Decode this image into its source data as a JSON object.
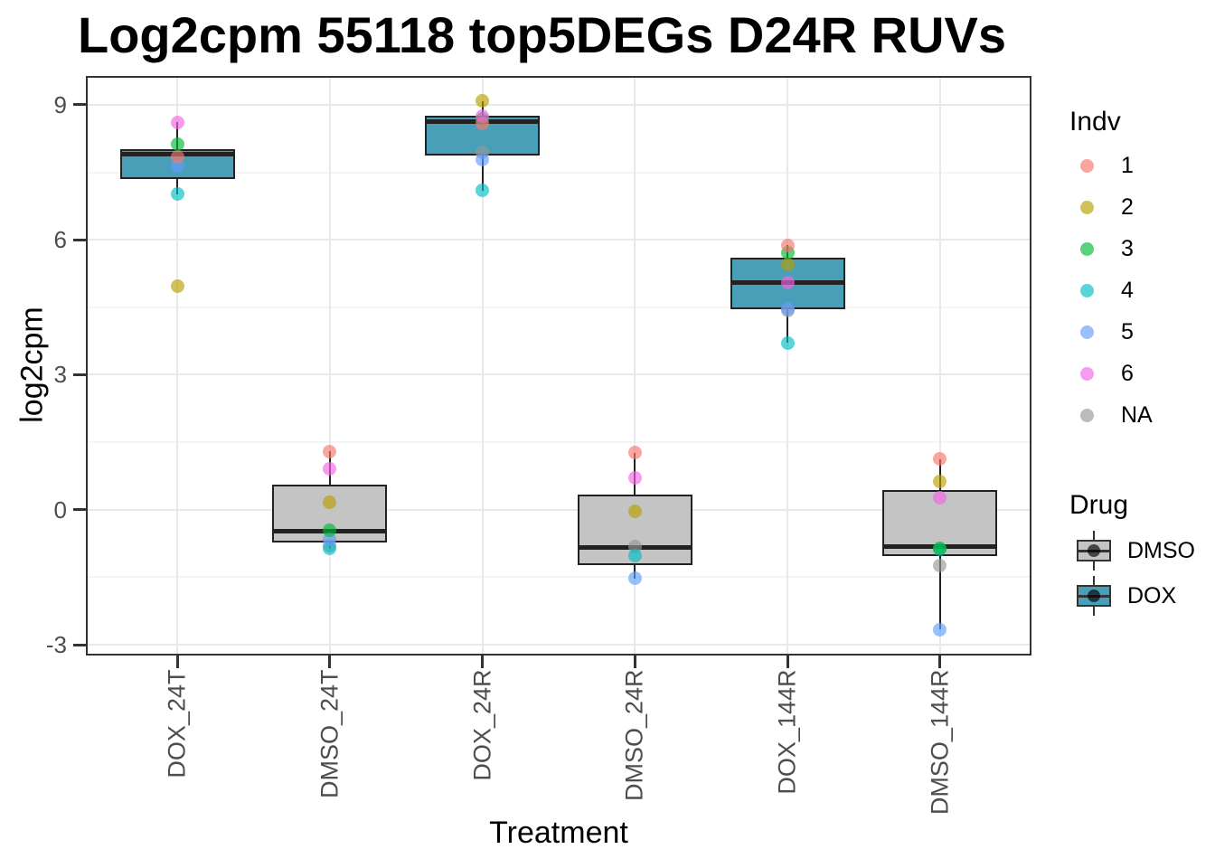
{
  "title": "Log2cpm 55118 top5DEGs D24R RUVs",
  "axes": {
    "x_title": "Treatment",
    "y_title": "log2cpm",
    "y_tick_labels": [
      "9",
      "6",
      "3",
      "0",
      "-3"
    ]
  },
  "legend_indv": {
    "title": "Indv",
    "entries": [
      {
        "label": "1",
        "color": "#F8766D"
      },
      {
        "label": "2",
        "color": "#B79F00"
      },
      {
        "label": "3",
        "color": "#00BA38"
      },
      {
        "label": "4",
        "color": "#00BFC4"
      },
      {
        "label": "5",
        "color": "#619CFF"
      },
      {
        "label": "6",
        "color": "#F564E3"
      },
      {
        "label": "NA",
        "color": "#969696"
      }
    ]
  },
  "legend_drug": {
    "title": "Drug",
    "entries": [
      {
        "label": "DMSO",
        "color": "#C4C4C4"
      },
      {
        "label": "DOX",
        "color": "#4A9FB8"
      }
    ]
  },
  "chart_data": {
    "type": "boxplot",
    "title": "Log2cpm 55118 top5DEGs D24R RUVs",
    "xlabel": "Treatment",
    "ylabel": "log2cpm",
    "ylim": [
      -3.24,
      9.64
    ],
    "y_major_ticks": [
      9,
      6,
      3,
      0,
      -3
    ],
    "y_minor_gridlines": [
      7.5,
      4.5,
      1.5,
      -1.5
    ],
    "categories": [
      "DOX_24T",
      "DMSO_24T",
      "DOX_24R",
      "DMSO_24R",
      "DOX_144R",
      "DMSO_144R"
    ],
    "point_alpha": 0.65,
    "colors": {
      "drug_fill": {
        "DMSO": "#C4C4C4",
        "DOX": "#4A9FB8"
      },
      "indv": {
        "1": "#F8766D",
        "2": "#B79F00",
        "3": "#00BA38",
        "4": "#00BFC4",
        "5": "#619CFF",
        "6": "#F564E3",
        "NA": "#969696"
      },
      "box_border": "#222222",
      "panel_border": "#333333",
      "gridline_major": "#E9E9E9",
      "gridline_minor": "#F4F4F4",
      "tick_mark": "#333333",
      "tick_label": "#4D4D4D"
    },
    "boxes": [
      {
        "category": "DOX_24T",
        "drug": "DOX",
        "q1": 7.34,
        "median": 7.9,
        "q3": 8.01,
        "whisker_low": 7.01,
        "whisker_high": 8.61,
        "points": [
          {
            "indv": "2",
            "value": 4.96
          },
          {
            "indv": "4",
            "value": 7.01
          },
          {
            "indv": "5",
            "value": 7.64
          },
          {
            "indv": "1",
            "value": 7.85
          },
          {
            "indv": "3",
            "value": 8.13
          },
          {
            "indv": "6",
            "value": 8.61
          }
        ]
      },
      {
        "category": "DMSO_24T",
        "drug": "DMSO",
        "q1": -0.73,
        "median": -0.48,
        "q3": 0.56,
        "whisker_low": -0.86,
        "whisker_high": 1.3,
        "points": [
          {
            "indv": "NA",
            "value": -0.8
          },
          {
            "indv": "4",
            "value": -0.86
          },
          {
            "indv": "5",
            "value": -0.65
          },
          {
            "indv": "3",
            "value": -0.46
          },
          {
            "indv": "2",
            "value": 0.16
          },
          {
            "indv": "6",
            "value": 0.9
          },
          {
            "indv": "1",
            "value": 1.3
          }
        ]
      },
      {
        "category": "DOX_24R",
        "drug": "DOX",
        "q1": 7.88,
        "median": 8.63,
        "q3": 8.76,
        "whisker_low": 7.09,
        "whisker_high": 9.08,
        "points": [
          {
            "indv": "NA",
            "value": 7.95
          },
          {
            "indv": "5",
            "value": 7.78
          },
          {
            "indv": "4",
            "value": 7.09
          },
          {
            "indv": "3",
            "value": 8.68
          },
          {
            "indv": "1",
            "value": 8.59
          },
          {
            "indv": "6",
            "value": 8.75
          },
          {
            "indv": "2",
            "value": 9.08
          }
        ]
      },
      {
        "category": "DMSO_24R",
        "drug": "DMSO",
        "q1": -1.24,
        "median": -0.84,
        "q3": 0.34,
        "whisker_low": -1.53,
        "whisker_high": 1.27,
        "points": [
          {
            "indv": "NA",
            "value": -0.81
          },
          {
            "indv": "4",
            "value": -1.01
          },
          {
            "indv": "5",
            "value": -1.53
          },
          {
            "indv": "2",
            "value": -0.04
          },
          {
            "indv": "6",
            "value": 0.7
          },
          {
            "indv": "1",
            "value": 1.27
          }
        ]
      },
      {
        "category": "DOX_144R",
        "drug": "DOX",
        "q1": 4.45,
        "median": 5.05,
        "q3": 5.6,
        "whisker_low": 3.71,
        "whisker_high": 5.88,
        "points": [
          {
            "indv": "NA",
            "value": 4.43
          },
          {
            "indv": "5",
            "value": 4.47
          },
          {
            "indv": "4",
            "value": 3.71
          },
          {
            "indv": "2",
            "value": 5.45
          },
          {
            "indv": "3",
            "value": 5.71
          },
          {
            "indv": "1",
            "value": 5.88
          },
          {
            "indv": "6",
            "value": 5.05
          }
        ]
      },
      {
        "category": "DMSO_144R",
        "drug": "DMSO",
        "q1": -1.03,
        "median": -0.81,
        "q3": 0.44,
        "whisker_low": -2.66,
        "whisker_high": 1.13,
        "points": [
          {
            "indv": "NA",
            "value": -1.24
          },
          {
            "indv": "4",
            "value": -0.88
          },
          {
            "indv": "3",
            "value": -0.86
          },
          {
            "indv": "5",
            "value": -2.66
          },
          {
            "indv": "2",
            "value": 0.63
          },
          {
            "indv": "6",
            "value": 0.26
          },
          {
            "indv": "1",
            "value": 1.13
          }
        ]
      }
    ],
    "legend": {
      "indv_title": "Indv",
      "drug_title": "Drug",
      "legend_position": "right"
    }
  }
}
